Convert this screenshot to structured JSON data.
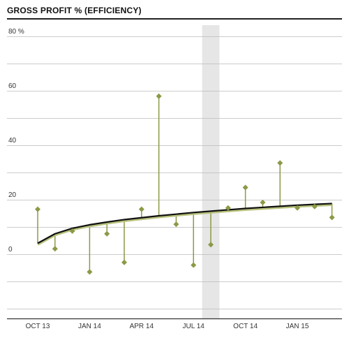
{
  "chart_data": {
    "type": "scatter",
    "title": "GROSS PROFIT % (EFFICIENCY)",
    "xlabel": "",
    "ylabel": "",
    "y_unit_label": "80 %",
    "ylim": [
      -20,
      90
    ],
    "yticks": [
      0,
      20,
      40,
      60,
      80
    ],
    "ytick_labels": [
      "0",
      "20",
      "40",
      "60",
      "80 %"
    ],
    "grid": true,
    "x_tick_labels": [
      "OCT 13",
      "JAN 14",
      "APR 14",
      "JUL 14",
      "OCT 14",
      "JAN 15"
    ],
    "x_tick_index": [
      0,
      3,
      6,
      9,
      12,
      15
    ],
    "highlight_band_index": [
      9.5,
      10.5
    ],
    "points": [
      {
        "month": 0,
        "value": 16.5,
        "trend": 4.0
      },
      {
        "month": 1,
        "value": 2.0,
        "trend": 7.5
      },
      {
        "month": 2,
        "value": 8.5,
        "trend": 9.5
      },
      {
        "month": 3,
        "value": -6.5,
        "trend": 10.8
      },
      {
        "month": 4,
        "value": 7.5,
        "trend": 11.8
      },
      {
        "month": 5,
        "value": -3.0,
        "trend": 12.7
      },
      {
        "month": 6,
        "value": 16.5,
        "trend": 13.4
      },
      {
        "month": 7,
        "value": 58.0,
        "trend": 14.1
      },
      {
        "month": 8,
        "value": 11.0,
        "trend": 14.7
      },
      {
        "month": 9,
        "value": -4.0,
        "trend": 15.3
      },
      {
        "month": 10,
        "value": 3.5,
        "trend": 15.8
      },
      {
        "month": 11,
        "value": 17.0,
        "trend": 16.3
      },
      {
        "month": 12,
        "value": 24.5,
        "trend": 16.8
      },
      {
        "month": 13,
        "value": 19.0,
        "trend": 17.2
      },
      {
        "month": 14,
        "value": 33.5,
        "trend": 17.6
      },
      {
        "month": 15,
        "value": 17.0,
        "trend": 18.0
      },
      {
        "month": 16,
        "value": 17.5,
        "trend": 18.3
      },
      {
        "month": 17,
        "value": 13.5,
        "trend": 18.6
      }
    ],
    "trend_series": "trend",
    "colors": {
      "marker": "#8a9a46",
      "stem": "#8a9a46",
      "trend": "#111111",
      "trend_shadow": "#b9c27e",
      "band": "#e6e6e6",
      "grid": "#bbbbbb"
    }
  }
}
